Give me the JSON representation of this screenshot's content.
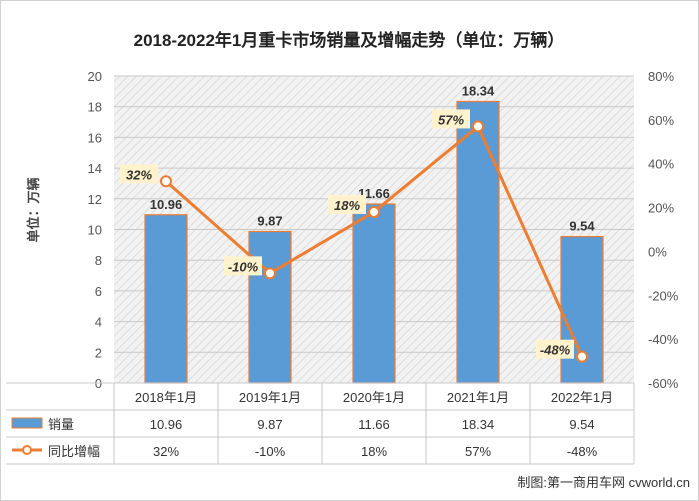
{
  "chart_data": {
    "type": "bar",
    "title": "2018-2022年1月重卡市场销量及增幅走势（单位：万辆）",
    "ylabel": "单位：万辆",
    "categories": [
      "2018年1月",
      "2019年1月",
      "2020年1月",
      "2021年1月",
      "2022年1月"
    ],
    "series": [
      {
        "name": "销量",
        "type": "bar",
        "values": [
          10.96,
          9.87,
          11.66,
          18.34,
          9.54
        ],
        "labels": [
          "10.96",
          "9.87",
          "11.66",
          "18.34",
          "9.54"
        ]
      },
      {
        "name": "同比增幅",
        "type": "line",
        "axis": "right",
        "values": [
          32,
          -10,
          18,
          57,
          -48
        ],
        "labels": [
          "32%",
          "-10%",
          "18%",
          "57%",
          "-48%"
        ]
      }
    ],
    "ylim": [
      0,
      20
    ],
    "yticks": [
      "0",
      "2",
      "4",
      "6",
      "8",
      "10",
      "12",
      "14",
      "16",
      "18",
      "20"
    ],
    "y2lim": [
      -60,
      80
    ],
    "y2ticks": [
      "-60%",
      "-40%",
      "-20%",
      "0%",
      "20%",
      "40%",
      "60%",
      "80%"
    ],
    "data_table": true,
    "bar_color": "#5b9bd5",
    "line_color": "#ed7d31"
  },
  "credit": "制图:第一商用车网 cvworld.cn"
}
